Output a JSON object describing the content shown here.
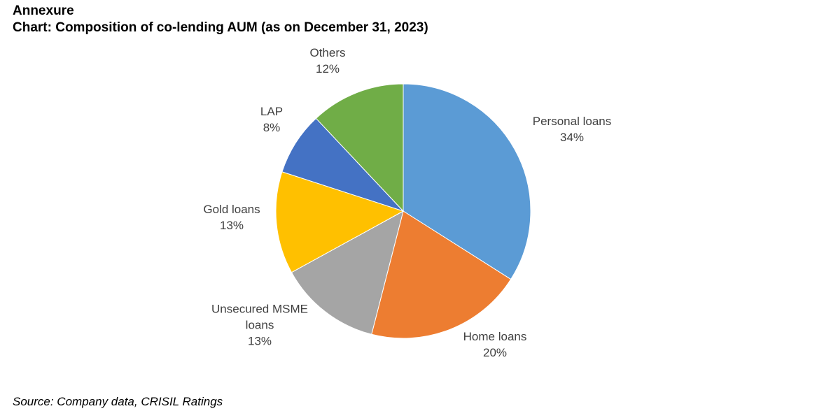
{
  "heading": "Annexure",
  "chart_title": "Chart: Composition of co-lending AUM (as on December 31, 2023)",
  "source": "Source: Company data, CRISIL Ratings",
  "chart_data": {
    "type": "pie",
    "title": "Chart: Composition of co-lending AUM (as on December 31, 2023)",
    "unit": "%",
    "slices": [
      {
        "name": "Personal loans",
        "name_lines": [
          "Personal loans"
        ],
        "value": 34,
        "value_label": "34%",
        "color": "#5B9BD5"
      },
      {
        "name": "Home loans",
        "name_lines": [
          "Home loans"
        ],
        "value": 20,
        "value_label": "20%",
        "color": "#ED7D31"
      },
      {
        "name": "Unsecured MSME loans",
        "name_lines": [
          "Unsecured MSME",
          "loans"
        ],
        "value": 13,
        "value_label": "13%",
        "color": "#A5A5A5"
      },
      {
        "name": "Gold loans",
        "name_lines": [
          "Gold loans"
        ],
        "value": 13,
        "value_label": "13%",
        "color": "#FFC000"
      },
      {
        "name": "LAP",
        "name_lines": [
          "LAP"
        ],
        "value": 8,
        "value_label": "8%",
        "color": "#4472C4"
      },
      {
        "name": "Others",
        "name_lines": [
          "Others"
        ],
        "value": 12,
        "value_label": "12%",
        "color": "#70AD47"
      }
    ]
  }
}
